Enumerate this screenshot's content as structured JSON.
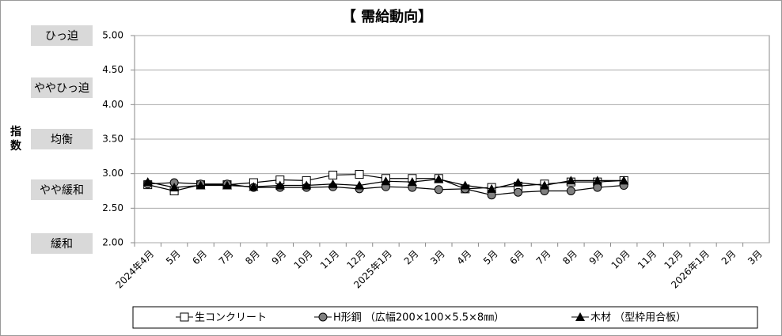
{
  "chart_data": {
    "type": "line",
    "title": "【 需給動向】",
    "y_label": "指数",
    "level_labels": [
      "ひっ迫",
      "ややひっ迫",
      "均衡",
      "やや緩和",
      "緩和"
    ],
    "categories": [
      "2024年4月",
      "5月",
      "6月",
      "7月",
      "8月",
      "9月",
      "10月",
      "11月",
      "12月",
      "2025年1月",
      "2月",
      "3月",
      "4月",
      "5月",
      "6月",
      "7月",
      "8月",
      "9月",
      "10月",
      "11月",
      "12月",
      "2026年1月",
      "2月",
      "3月"
    ],
    "series": [
      {
        "name": "生コンクリート",
        "color": "#000000",
        "marker": "square",
        "values": [
          2.84,
          2.75,
          2.84,
          2.84,
          2.87,
          2.91,
          2.9,
          2.98,
          2.99,
          2.93,
          2.93,
          2.93,
          2.78,
          2.8,
          2.82,
          2.85,
          2.88,
          2.88,
          2.9,
          null,
          null,
          null,
          null,
          null
        ]
      },
      {
        "name": "H形鋼 （広幅200×100×5.5×8㎜）",
        "color": "#000000",
        "marker": "circle",
        "values": [
          2.85,
          2.87,
          2.85,
          2.85,
          2.8,
          2.8,
          2.8,
          2.81,
          2.78,
          2.81,
          2.8,
          2.77,
          2.78,
          2.69,
          2.73,
          2.75,
          2.75,
          2.8,
          2.83,
          null,
          null,
          null,
          null,
          null
        ]
      },
      {
        "name": "木材 （型枠用合板）",
        "color": "#000000",
        "marker": "triangle",
        "values": [
          2.88,
          2.8,
          2.83,
          2.83,
          2.81,
          2.83,
          2.83,
          2.85,
          2.83,
          2.89,
          2.88,
          2.92,
          2.83,
          2.78,
          2.87,
          2.83,
          2.9,
          2.9,
          2.9,
          null,
          null,
          null,
          null,
          null
        ]
      }
    ],
    "ylim": [
      2,
      5
    ],
    "yticks": [
      {
        "value": 2,
        "label": "2.00"
      },
      {
        "value": 2.5,
        "label": "2.50"
      },
      {
        "value": 3,
        "label": "3.00"
      },
      {
        "value": 3.5,
        "label": "3.50"
      },
      {
        "value": 4,
        "label": "4.00"
      },
      {
        "value": 4.5,
        "label": "4.50"
      },
      {
        "value": 5,
        "label": "5.00"
      }
    ],
    "grid": true
  }
}
